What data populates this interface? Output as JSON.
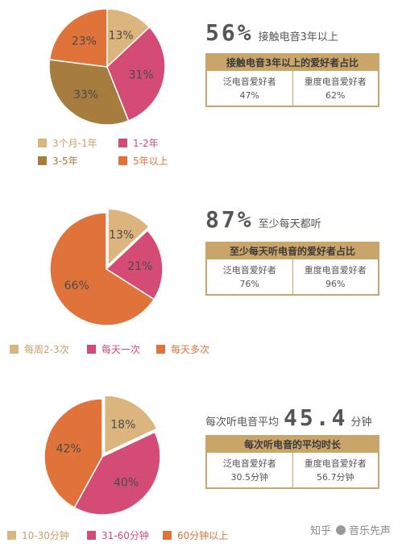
{
  "colors": {
    "tan": "#dbb47e",
    "pink": "#d44c76",
    "brown": "#a67c3f",
    "orange": "#e0733a",
    "gold": "#c9a56a"
  },
  "chart_data": [
    {
      "type": "pie",
      "slices": [
        {
          "label": "3个月-1年",
          "value": 13,
          "display": "13%",
          "color": "#dbb47e"
        },
        {
          "label": "1-2年",
          "value": 31,
          "display": "31%",
          "color": "#d44c76"
        },
        {
          "label": "3-5年",
          "value": 33,
          "display": "33%",
          "color": "#a67c3f"
        },
        {
          "label": "5年以上",
          "value": 23,
          "display": "23%",
          "color": "#e0733a"
        }
      ],
      "legend": [
        "3个月-1年",
        "1-2年",
        "3-5年",
        "5年以上"
      ]
    },
    {
      "type": "pie",
      "slices": [
        {
          "label": "每周2-3次",
          "value": 13,
          "display": "13%",
          "color": "#dbb47e"
        },
        {
          "label": "每天一次",
          "value": 21,
          "display": "21%",
          "color": "#d44c76"
        },
        {
          "label": "每天多次",
          "value": 66,
          "display": "66%",
          "color": "#e0733a"
        }
      ],
      "legend": [
        "每周2-3次",
        "每天一次",
        "每天多次"
      ]
    },
    {
      "type": "pie",
      "slices": [
        {
          "label": "10-30分钟",
          "value": 18,
          "display": "18%",
          "color": "#dbb47e"
        },
        {
          "label": "31-60分钟",
          "value": 40,
          "display": "40%",
          "color": "#d44c76"
        },
        {
          "label": "60分钟以上",
          "value": 42,
          "display": "42%",
          "color": "#e0733a"
        }
      ],
      "legend": [
        "10-30分钟",
        "31-60分钟",
        "60分钟以上"
      ]
    }
  ],
  "stats": [
    {
      "big": "56%",
      "caption": "接触电音3年以上",
      "box_title": "接触电音3年以上的爱好者占比",
      "col1_label": "泛电音爱好者",
      "col1_value": "47%",
      "col2_label": "重度电音爱好者",
      "col2_value": "62%"
    },
    {
      "big": "87%",
      "caption": "至少每天都听",
      "box_title": "至少每天听电音的爱好者占比",
      "col1_label": "泛电音爱好者",
      "col1_value": "76%",
      "col2_label": "重度电音爱好者",
      "col2_value": "96%"
    },
    {
      "pre": "每次听电音平均",
      "big": "45.4",
      "post": "分钟",
      "box_title": "每次听电音的平均时长",
      "col1_label": "泛电音爱好者",
      "col1_value": "30.5分钟",
      "col2_label": "重度电音爱好者",
      "col2_value": "56.7分钟"
    }
  ],
  "watermark": {
    "site": "知乎",
    "author": "音乐先声"
  }
}
